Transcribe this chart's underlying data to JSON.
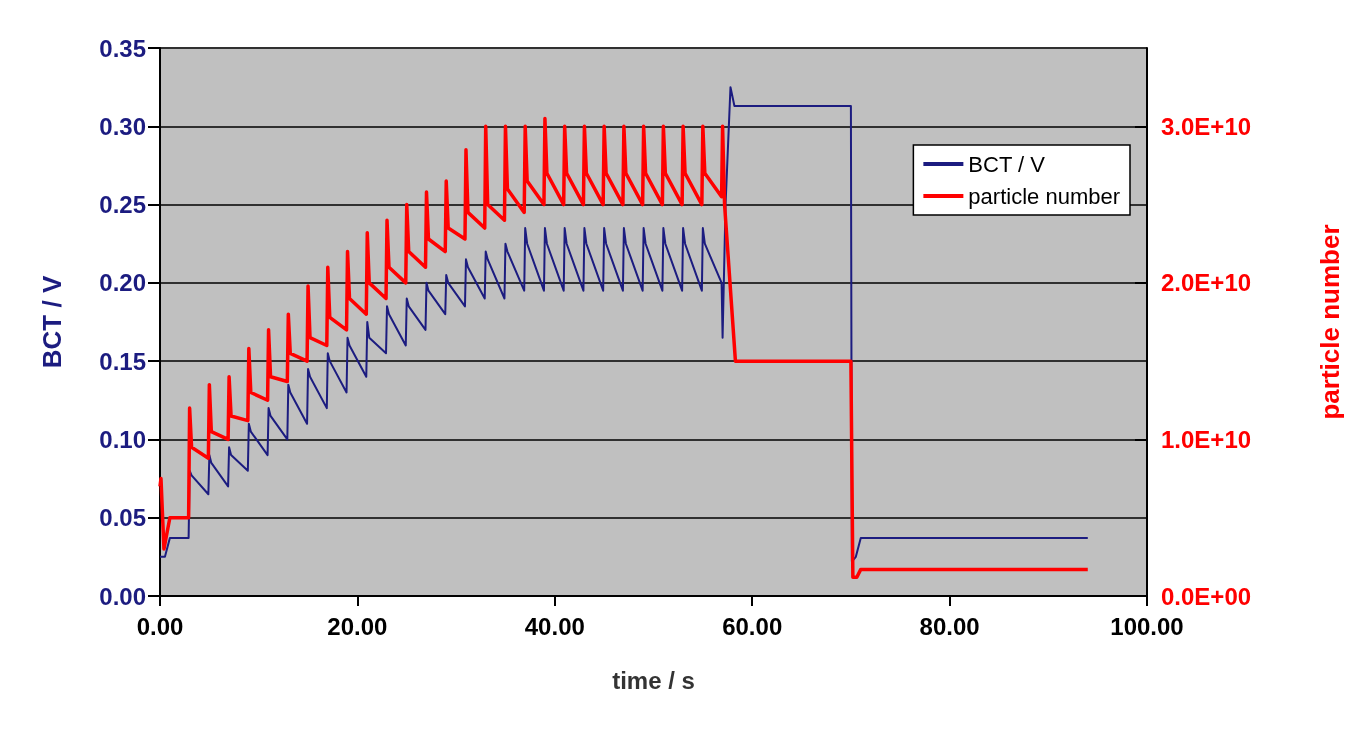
{
  "chart_data": {
    "type": "line",
    "xlabel": "time / s",
    "ylabel": "BCT / V",
    "y2label": "particle number",
    "xlim": [
      0,
      100
    ],
    "xticks": [
      {
        "value": 0,
        "label": "0.00"
      },
      {
        "value": 20,
        "label": "20.00"
      },
      {
        "value": 40,
        "label": "40.00"
      },
      {
        "value": 60,
        "label": "60.00"
      },
      {
        "value": 80,
        "label": "80.00"
      },
      {
        "value": 100,
        "label": "100.00"
      }
    ],
    "ylim": [
      0,
      0.35
    ],
    "yticks": [
      {
        "value": 0,
        "label": "0.00"
      },
      {
        "value": 0.05,
        "label": "0.05"
      },
      {
        "value": 0.1,
        "label": "0.10"
      },
      {
        "value": 0.15,
        "label": "0.15"
      },
      {
        "value": 0.2,
        "label": "0.20"
      },
      {
        "value": 0.25,
        "label": "0.25"
      },
      {
        "value": 0.3,
        "label": "0.30"
      },
      {
        "value": 0.35,
        "label": "0.35"
      }
    ],
    "y2lim": [
      0,
      35000000000.0
    ],
    "y2ticks": [
      {
        "value": 0,
        "label": "0.0E+00"
      },
      {
        "value": 10000000000.0,
        "label": "1.0E+10"
      },
      {
        "value": 20000000000.0,
        "label": "2.0E+10"
      },
      {
        "value": 30000000000.0,
        "label": "3.0E+10"
      }
    ],
    "grid": "y",
    "legend": "top right",
    "marker": "none",
    "line_style": "solid",
    "series": [
      {
        "name": "BCT / V",
        "color": "#1c1c80",
        "x": [
          0,
          0.5,
          1,
          2.9,
          3,
          3.2,
          4.9,
          5,
          5.2,
          6.9,
          7,
          7.2,
          8.9,
          9,
          9.2,
          10.9,
          11,
          11.2,
          12.9,
          13,
          13.2,
          14.9,
          15,
          15.2,
          16.9,
          17,
          17.2,
          18.9,
          19,
          19.2,
          20.9,
          21,
          21.2,
          22.9,
          23,
          23.2,
          24.9,
          25,
          25.2,
          26.9,
          27,
          27.2,
          28.9,
          29,
          29.2,
          30.9,
          31,
          31.2,
          32.9,
          33,
          33.2,
          34.9,
          35,
          35.2,
          36.9,
          37,
          37.2,
          38.9,
          39,
          39.2,
          40.9,
          41,
          41.2,
          42.9,
          43,
          43.2,
          44.9,
          45,
          45.2,
          46.9,
          47,
          47.2,
          48.9,
          49,
          49.2,
          50.9,
          51,
          51.2,
          52.9,
          53,
          53.2,
          54.9,
          55,
          55.2,
          56.9,
          57,
          57.3,
          57.8,
          58.2,
          70,
          70.1,
          70.5,
          71,
          94
        ],
        "values": [
          0.025,
          0.025,
          0.037,
          0.037,
          0.08,
          0.077,
          0.065,
          0.09,
          0.085,
          0.07,
          0.095,
          0.09,
          0.08,
          0.11,
          0.105,
          0.09,
          0.12,
          0.115,
          0.1,
          0.135,
          0.13,
          0.11,
          0.145,
          0.14,
          0.12,
          0.155,
          0.15,
          0.13,
          0.165,
          0.16,
          0.14,
          0.175,
          0.165,
          0.155,
          0.185,
          0.18,
          0.16,
          0.19,
          0.185,
          0.17,
          0.2,
          0.195,
          0.18,
          0.205,
          0.2,
          0.185,
          0.215,
          0.21,
          0.19,
          0.22,
          0.215,
          0.19,
          0.225,
          0.22,
          0.195,
          0.235,
          0.225,
          0.195,
          0.235,
          0.225,
          0.195,
          0.235,
          0.225,
          0.195,
          0.235,
          0.225,
          0.195,
          0.235,
          0.225,
          0.195,
          0.235,
          0.225,
          0.195,
          0.235,
          0.225,
          0.195,
          0.235,
          0.225,
          0.195,
          0.235,
          0.225,
          0.195,
          0.235,
          0.225,
          0.2,
          0.165,
          0.25,
          0.325,
          0.313,
          0.313,
          0.022,
          0.025,
          0.037,
          0.037
        ]
      },
      {
        "name": "particle number",
        "color": "#ff0000",
        "axis": "y2",
        "x": [
          0,
          0.1,
          0.4,
          1,
          2.9,
          3,
          3.2,
          4.9,
          5,
          5.2,
          6.9,
          7,
          7.2,
          8.9,
          9,
          9.2,
          10.9,
          11,
          11.2,
          12.9,
          13,
          13.2,
          14.9,
          15,
          15.2,
          16.9,
          17,
          17.2,
          18.9,
          19,
          19.2,
          20.9,
          21,
          21.2,
          22.9,
          23,
          23.2,
          24.9,
          25,
          25.2,
          26.9,
          27,
          27.2,
          28.9,
          29,
          29.2,
          30.9,
          31,
          31.2,
          32.9,
          33,
          33.2,
          34.9,
          35,
          35.2,
          36.9,
          37,
          37.2,
          38.9,
          39,
          39.2,
          40.9,
          41,
          41.2,
          42.9,
          43,
          43.2,
          44.9,
          45,
          45.2,
          46.9,
          47,
          47.2,
          48.9,
          49,
          49.2,
          50.9,
          51,
          51.2,
          52.9,
          53,
          53.2,
          54.9,
          55,
          55.2,
          56.9,
          57,
          57.2,
          58.3,
          70,
          70.2,
          70.6,
          71,
          94
        ],
        "values": [
          7000000000.0,
          7500000000.0,
          3000000000.0,
          5000000000.0,
          5000000000.0,
          12000000000.0,
          9500000000.0,
          8800000000.0,
          13500000000.0,
          10500000000.0,
          10000000000.0,
          14000000000.0,
          11500000000.0,
          11200000000.0,
          15800000000.0,
          13000000000.0,
          12500000000.0,
          17000000000.0,
          14000000000.0,
          13700000000.0,
          18000000000.0,
          15500000000.0,
          15000000000.0,
          19800000000.0,
          16500000000.0,
          16000000000.0,
          21000000000.0,
          17800000000.0,
          17000000000.0,
          22000000000.0,
          19000000000.0,
          18000000000.0,
          23200000000.0,
          20000000000.0,
          19000000000.0,
          24000000000.0,
          21000000000.0,
          20000000000.0,
          25000000000.0,
          22000000000.0,
          21000000000.0,
          25800000000.0,
          22800000000.0,
          22000000000.0,
          26500000000.0,
          23500000000.0,
          22800000000.0,
          28500000000.0,
          24500000000.0,
          23500000000.0,
          30000000000.0,
          25000000000.0,
          24000000000.0,
          30000000000.0,
          26000000000.0,
          24500000000.0,
          30000000000.0,
          26500000000.0,
          25000000000.0,
          30500000000.0,
          27000000000.0,
          25000000000.0,
          30000000000.0,
          27000000000.0,
          25000000000.0,
          30000000000.0,
          27000000000.0,
          25000000000.0,
          30000000000.0,
          27000000000.0,
          25000000000.0,
          30000000000.0,
          27000000000.0,
          25000000000.0,
          30000000000.0,
          27000000000.0,
          25000000000.0,
          30000000000.0,
          27000000000.0,
          25000000000.0,
          30000000000.0,
          27000000000.0,
          25000000000.0,
          30000000000.0,
          27000000000.0,
          25500000000.0,
          30000000000.0,
          25000000000.0,
          15000000000.0,
          15000000000.0,
          1200000000.0,
          1200000000.0,
          1700000000.0,
          1700000000.0
        ]
      }
    ]
  }
}
